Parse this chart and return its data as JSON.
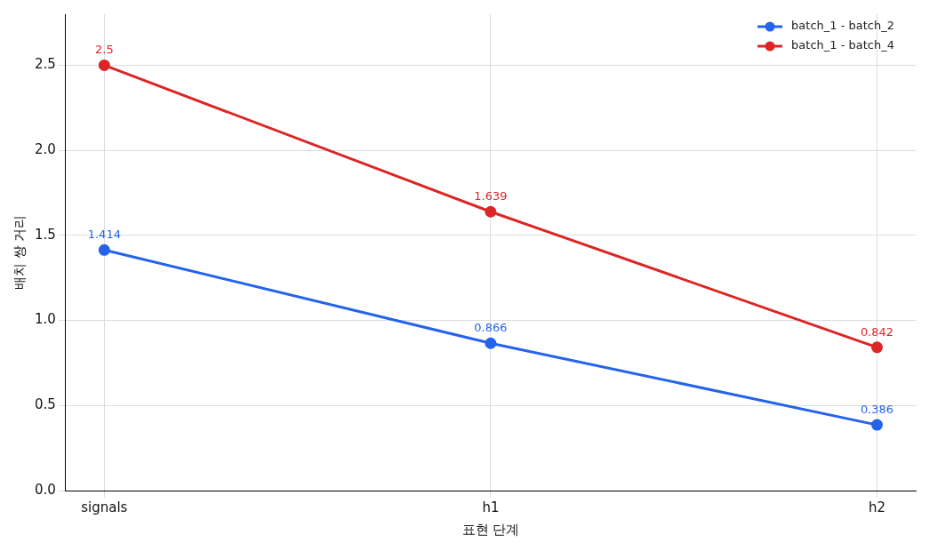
{
  "chart_data": {
    "type": "line",
    "xlabel": "표현 단계",
    "ylabel": "배치 쌍 거리",
    "categories": [
      "signals",
      "h1",
      "h2"
    ],
    "series": [
      {
        "name": "batch_1 - batch_2",
        "color": "#2563eb",
        "values": [
          1.414,
          0.866,
          0.386
        ]
      },
      {
        "name": "batch_1 - batch_4",
        "color": "#dc2626",
        "values": [
          2.5,
          1.639,
          0.842
        ]
      }
    ],
    "ylim": [
      0,
      2.8
    ],
    "yticks": [
      {
        "value": 0,
        "label": "0.0"
      },
      {
        "value": 0.5,
        "label": "0.5"
      },
      {
        "value": 1,
        "label": "1.0"
      },
      {
        "value": 1.5,
        "label": "1.5"
      },
      {
        "value": 2,
        "label": "2.0"
      },
      {
        "value": 2.5,
        "label": "2.5"
      }
    ],
    "grid": true,
    "legend": "top right",
    "marker": "circle",
    "line_style": "solid",
    "data_labels": true
  }
}
